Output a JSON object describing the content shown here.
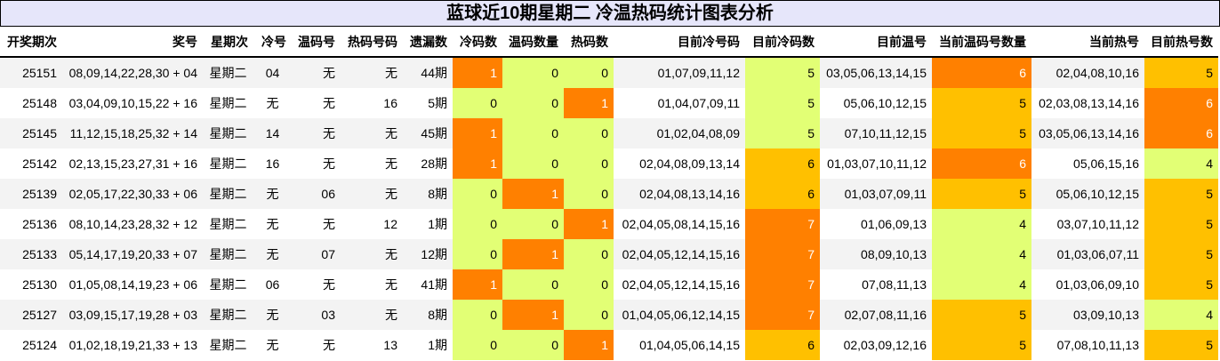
{
  "title": "蓝球近10期星期二 冷温热码统计图表分析",
  "colors": {
    "orange": "#ff8000",
    "amber": "#ffc000",
    "green": "#e2ff75"
  },
  "color_rules": {
    "cold_count": {
      "0": "green",
      "1": "orange"
    },
    "warm_count": {
      "0": "green",
      "1": "orange"
    },
    "hot_count": {
      "0": "green",
      "1": "orange"
    },
    "cur_cold_count": {
      "5": "green",
      "6": "amber",
      "7": "orange"
    },
    "cur_warm_count": {
      "4": "green",
      "5": "amber",
      "6": "orange"
    },
    "cur_hot_count": {
      "4": "green",
      "5": "amber",
      "6": "orange"
    }
  },
  "columns": [
    {
      "key": "issue",
      "label": "开奖期次"
    },
    {
      "key": "numbers",
      "label": "奖号"
    },
    {
      "key": "weekday",
      "label": "星期次"
    },
    {
      "key": "cold",
      "label": "冷号"
    },
    {
      "key": "warm",
      "label": "温码号"
    },
    {
      "key": "hot",
      "label": "热码号码"
    },
    {
      "key": "miss",
      "label": "遗漏数"
    },
    {
      "key": "cold_count",
      "label": "冷码数"
    },
    {
      "key": "warm_count",
      "label": "温码数量"
    },
    {
      "key": "hot_count",
      "label": "热码数"
    },
    {
      "key": "cur_cold",
      "label": "目前冷号码"
    },
    {
      "key": "cur_cold_count",
      "label": "目前冷码数"
    },
    {
      "key": "cur_warm",
      "label": "目前温号"
    },
    {
      "key": "cur_warm_count",
      "label": "当前温码号数量"
    },
    {
      "key": "cur_hot",
      "label": "当前热号"
    },
    {
      "key": "cur_hot_count",
      "label": "目前热号数"
    }
  ],
  "rows": [
    {
      "issue": "25151",
      "numbers": "08,09,14,22,28,30 + 04",
      "weekday": "星期二",
      "cold": "04",
      "warm": "无",
      "hot": "无",
      "miss": "44期",
      "cold_count": "1",
      "warm_count": "0",
      "hot_count": "0",
      "cur_cold": "01,07,09,11,12",
      "cur_cold_count": "5",
      "cur_warm": "03,05,06,13,14,15",
      "cur_warm_count": "6",
      "cur_hot": "02,04,08,10,16",
      "cur_hot_count": "5"
    },
    {
      "issue": "25148",
      "numbers": "03,04,09,10,15,22 + 16",
      "weekday": "星期二",
      "cold": "无",
      "warm": "无",
      "hot": "16",
      "miss": "5期",
      "cold_count": "0",
      "warm_count": "0",
      "hot_count": "1",
      "cur_cold": "01,04,07,09,11",
      "cur_cold_count": "5",
      "cur_warm": "05,06,10,12,15",
      "cur_warm_count": "5",
      "cur_hot": "02,03,08,13,14,16",
      "cur_hot_count": "6"
    },
    {
      "issue": "25145",
      "numbers": "11,12,15,18,25,32 + 14",
      "weekday": "星期二",
      "cold": "14",
      "warm": "无",
      "hot": "无",
      "miss": "45期",
      "cold_count": "1",
      "warm_count": "0",
      "hot_count": "0",
      "cur_cold": "01,02,04,08,09",
      "cur_cold_count": "5",
      "cur_warm": "07,10,11,12,15",
      "cur_warm_count": "5",
      "cur_hot": "03,05,06,13,14,16",
      "cur_hot_count": "6"
    },
    {
      "issue": "25142",
      "numbers": "02,13,15,23,27,31 + 16",
      "weekday": "星期二",
      "cold": "16",
      "warm": "无",
      "hot": "无",
      "miss": "28期",
      "cold_count": "1",
      "warm_count": "0",
      "hot_count": "0",
      "cur_cold": "02,04,08,09,13,14",
      "cur_cold_count": "6",
      "cur_warm": "01,03,07,10,11,12",
      "cur_warm_count": "6",
      "cur_hot": "05,06,15,16",
      "cur_hot_count": "4"
    },
    {
      "issue": "25139",
      "numbers": "02,05,17,22,30,33 + 06",
      "weekday": "星期二",
      "cold": "无",
      "warm": "06",
      "hot": "无",
      "miss": "8期",
      "cold_count": "0",
      "warm_count": "1",
      "hot_count": "0",
      "cur_cold": "02,04,08,13,14,16",
      "cur_cold_count": "6",
      "cur_warm": "01,03,07,09,11",
      "cur_warm_count": "5",
      "cur_hot": "05,06,10,12,15",
      "cur_hot_count": "5"
    },
    {
      "issue": "25136",
      "numbers": "08,10,14,23,28,32 + 12",
      "weekday": "星期二",
      "cold": "无",
      "warm": "无",
      "hot": "12",
      "miss": "1期",
      "cold_count": "0",
      "warm_count": "0",
      "hot_count": "1",
      "cur_cold": "02,04,05,08,14,15,16",
      "cur_cold_count": "7",
      "cur_warm": "01,06,09,13",
      "cur_warm_count": "4",
      "cur_hot": "03,07,10,11,12",
      "cur_hot_count": "5"
    },
    {
      "issue": "25133",
      "numbers": "05,14,17,19,20,33 + 07",
      "weekday": "星期二",
      "cold": "无",
      "warm": "07",
      "hot": "无",
      "miss": "12期",
      "cold_count": "0",
      "warm_count": "1",
      "hot_count": "0",
      "cur_cold": "02,04,05,12,14,15,16",
      "cur_cold_count": "7",
      "cur_warm": "08,09,10,13",
      "cur_warm_count": "4",
      "cur_hot": "01,03,06,07,11",
      "cur_hot_count": "5"
    },
    {
      "issue": "25130",
      "numbers": "01,05,08,14,19,23 + 06",
      "weekday": "星期二",
      "cold": "06",
      "warm": "无",
      "hot": "无",
      "miss": "41期",
      "cold_count": "1",
      "warm_count": "0",
      "hot_count": "0",
      "cur_cold": "02,04,05,12,14,15,16",
      "cur_cold_count": "7",
      "cur_warm": "07,08,11,13",
      "cur_warm_count": "4",
      "cur_hot": "01,03,06,09,10",
      "cur_hot_count": "5"
    },
    {
      "issue": "25127",
      "numbers": "03,09,15,17,19,28 + 03",
      "weekday": "星期二",
      "cold": "无",
      "warm": "03",
      "hot": "无",
      "miss": "8期",
      "cold_count": "0",
      "warm_count": "1",
      "hot_count": "0",
      "cur_cold": "01,04,05,06,12,14,15",
      "cur_cold_count": "7",
      "cur_warm": "02,07,08,11,16",
      "cur_warm_count": "5",
      "cur_hot": "03,09,10,13",
      "cur_hot_count": "4"
    },
    {
      "issue": "25124",
      "numbers": "01,02,18,19,21,33 + 13",
      "weekday": "星期二",
      "cold": "无",
      "warm": "无",
      "hot": "13",
      "miss": "1期",
      "cold_count": "0",
      "warm_count": "0",
      "hot_count": "1",
      "cur_cold": "01,04,05,06,14,15",
      "cur_cold_count": "6",
      "cur_warm": "02,03,09,12,16",
      "cur_warm_count": "5",
      "cur_hot": "07,08,10,11,13",
      "cur_hot_count": "5"
    }
  ]
}
